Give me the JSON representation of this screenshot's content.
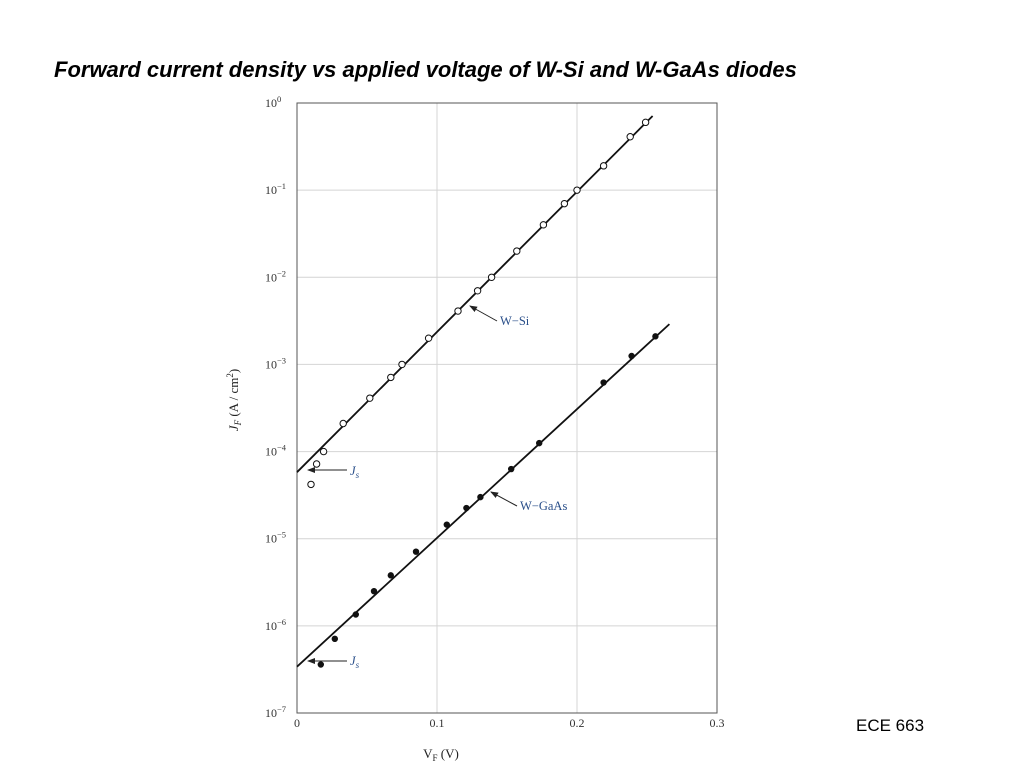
{
  "slide": {
    "title": "Forward current density vs applied voltage of W-Si and W-GaAs diodes",
    "footer": "ECE 663"
  },
  "chart_data": {
    "type": "scatter",
    "title": "",
    "xlabel": {
      "main": "V",
      "sub": "F",
      "unit": " (V)"
    },
    "ylabel": {
      "main": "J",
      "sub": "F",
      "unit_pre": " (A / cm",
      "unit_sup": "2",
      "unit_post": ")"
    },
    "xlim": [
      0,
      0.3
    ],
    "ylim": [
      1e-07,
      1
    ],
    "yscale": "log",
    "grid": true,
    "x_ticks": [
      {
        "value": 0,
        "label": "0"
      },
      {
        "value": 0.1,
        "label": "0.1"
      },
      {
        "value": 0.2,
        "label": "0.2"
      },
      {
        "value": 0.3,
        "label": "0.3"
      }
    ],
    "y_ticks": [
      {
        "exp": 0,
        "base": "10",
        "sup": "0"
      },
      {
        "exp": -1,
        "base": "10",
        "sup": "−1"
      },
      {
        "exp": -2,
        "base": "10",
        "sup": "−2"
      },
      {
        "exp": -3,
        "base": "10",
        "sup": "−3"
      },
      {
        "exp": -4,
        "base": "10",
        "sup": "−4"
      },
      {
        "exp": -5,
        "base": "10",
        "sup": "−5"
      },
      {
        "exp": -6,
        "base": "10",
        "sup": "−6"
      },
      {
        "exp": -7,
        "base": "10",
        "sup": "−7"
      }
    ],
    "series": [
      {
        "name": "W−Si",
        "marker": "open-circle",
        "points": [
          {
            "x": 0.01,
            "y": 4.2e-05
          },
          {
            "x": 0.014,
            "y": 7.2e-05
          },
          {
            "x": 0.019,
            "y": 0.0001
          },
          {
            "x": 0.033,
            "y": 0.00021
          },
          {
            "x": 0.052,
            "y": 0.00041
          },
          {
            "x": 0.067,
            "y": 0.00071
          },
          {
            "x": 0.075,
            "y": 0.001
          },
          {
            "x": 0.094,
            "y": 0.002
          },
          {
            "x": 0.115,
            "y": 0.0041
          },
          {
            "x": 0.129,
            "y": 0.007
          },
          {
            "x": 0.139,
            "y": 0.01
          },
          {
            "x": 0.157,
            "y": 0.02
          },
          {
            "x": 0.176,
            "y": 0.04
          },
          {
            "x": 0.191,
            "y": 0.07
          },
          {
            "x": 0.2,
            "y": 0.1
          },
          {
            "x": 0.219,
            "y": 0.19
          },
          {
            "x": 0.238,
            "y": 0.41
          },
          {
            "x": 0.249,
            "y": 0.6
          }
        ],
        "fit_line": {
          "x": [
            0.0,
            0.254
          ],
          "y": [
            5.8e-05,
            0.71
          ]
        }
      },
      {
        "name": "W−GaAs",
        "marker": "filled-circle",
        "points": [
          {
            "x": 0.017,
            "y": 3.6e-07
          },
          {
            "x": 0.027,
            "y": 7.1e-07
          },
          {
            "x": 0.042,
            "y": 1.35e-06
          },
          {
            "x": 0.055,
            "y": 2.5e-06
          },
          {
            "x": 0.067,
            "y": 3.8e-06
          },
          {
            "x": 0.085,
            "y": 7.1e-06
          },
          {
            "x": 0.107,
            "y": 1.45e-05
          },
          {
            "x": 0.121,
            "y": 2.25e-05
          },
          {
            "x": 0.131,
            "y": 3e-05
          },
          {
            "x": 0.153,
            "y": 6.3e-05
          },
          {
            "x": 0.173,
            "y": 0.000125
          },
          {
            "x": 0.219,
            "y": 0.00062
          },
          {
            "x": 0.239,
            "y": 0.00125
          },
          {
            "x": 0.256,
            "y": 0.0021
          }
        ],
        "fit_line": {
          "x": [
            0.0,
            0.266
          ],
          "y": [
            3.4e-07,
            0.0029
          ]
        }
      }
    ],
    "annotations": [
      {
        "id": "label-w-si",
        "text": "W−Si"
      },
      {
        "id": "label-w-gaas",
        "text": "W−GaAs"
      },
      {
        "id": "label-js-si",
        "main": "J",
        "sub": "s"
      },
      {
        "id": "label-js-gaas",
        "main": "J",
        "sub": "s"
      }
    ]
  }
}
